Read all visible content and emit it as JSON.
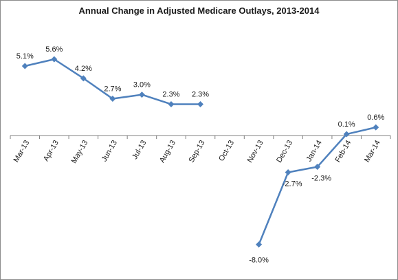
{
  "chart_data": {
    "type": "line",
    "title": "Annual Change in Adjusted Medicare Outlays, 2013-2014",
    "xlabel": "",
    "ylabel": "",
    "categories": [
      "Mar-13",
      "Apr-13",
      "May-13",
      "Jun-13",
      "Jul-13",
      "Aug-13",
      "Sep-13",
      "Oct-13",
      "Nov-13",
      "Dec-13",
      "Jan-14",
      "Feb-14",
      "Mar-14"
    ],
    "series": [
      {
        "name": "",
        "color": "#4f81bd",
        "values": [
          5.1,
          5.6,
          4.2,
          2.7,
          3.0,
          2.3,
          2.3,
          null,
          -8.0,
          -2.7,
          -2.3,
          0.1,
          0.6
        ],
        "labels": [
          "5.1%",
          "5.6%",
          "4.2%",
          "2.7%",
          "3.0%",
          "2.3%",
          "2.3%",
          "",
          "-8.0%",
          "-2.7%",
          "-2.3%",
          "0.1%",
          "0.6%"
        ]
      }
    ],
    "ylim": [
      -9,
      7
    ],
    "grid": false,
    "legend": "none"
  }
}
